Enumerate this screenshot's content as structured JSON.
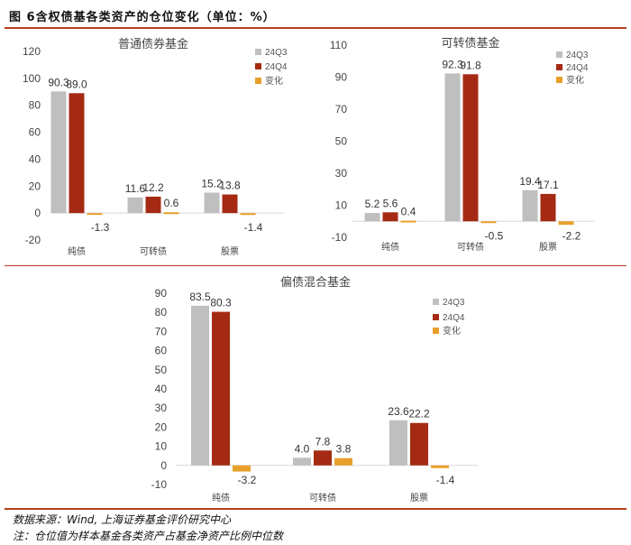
{
  "figure_title": "图 6含权债基各类资产的仓位变化（单位：%）",
  "source": "数据来源：Wind, 上海证券基金评价研究中心",
  "note": "注：仓位值为样本基金各类资产占基金净资产比例中位数",
  "colors": {
    "24Q3": "#bfbfbf",
    "24Q4": "#a52a14",
    "变化": "#e8a02a",
    "rule": "#b8401f"
  },
  "chart_data": [
    {
      "type": "bar",
      "title": "普通债券基金",
      "categories": [
        "纯债",
        "可转债",
        "股票"
      ],
      "series": [
        {
          "name": "24Q3",
          "values": [
            90.3,
            11.6,
            15.2
          ]
        },
        {
          "name": "24Q4",
          "values": [
            89.0,
            12.2,
            13.8
          ]
        },
        {
          "name": "变化",
          "values": [
            -1.3,
            0.6,
            -1.4
          ]
        }
      ],
      "yticks": [
        120,
        100,
        80,
        60,
        40,
        20,
        0,
        -20
      ],
      "ylim": [
        -20,
        120
      ],
      "legend": "top-right",
      "grid": false
    },
    {
      "type": "bar",
      "title": "可转债基金",
      "categories": [
        "纯债",
        "可转债",
        "股票"
      ],
      "series": [
        {
          "name": "24Q3",
          "values": [
            5.2,
            92.3,
            19.4
          ]
        },
        {
          "name": "24Q4",
          "values": [
            5.6,
            91.8,
            17.1
          ]
        },
        {
          "name": "变化",
          "values": [
            0.4,
            -0.5,
            -2.2
          ]
        }
      ],
      "yticks": [
        110,
        90,
        70,
        50,
        30,
        10,
        -10
      ],
      "ylim": [
        -10,
        110
      ],
      "legend": "top-right",
      "grid": false
    },
    {
      "type": "bar",
      "title": "偏债混合基金",
      "categories": [
        "纯债",
        "可转债",
        "股票"
      ],
      "series": [
        {
          "name": "24Q3",
          "values": [
            83.5,
            4.0,
            23.6
          ]
        },
        {
          "name": "24Q4",
          "values": [
            80.3,
            7.8,
            22.2
          ]
        },
        {
          "name": "变化",
          "values": [
            -3.2,
            3.8,
            -1.4
          ]
        }
      ],
      "yticks": [
        90,
        80,
        70,
        60,
        50,
        40,
        30,
        20,
        10,
        0,
        -10
      ],
      "ylim": [
        -10,
        90
      ],
      "legend": "top-right",
      "grid": false
    }
  ]
}
